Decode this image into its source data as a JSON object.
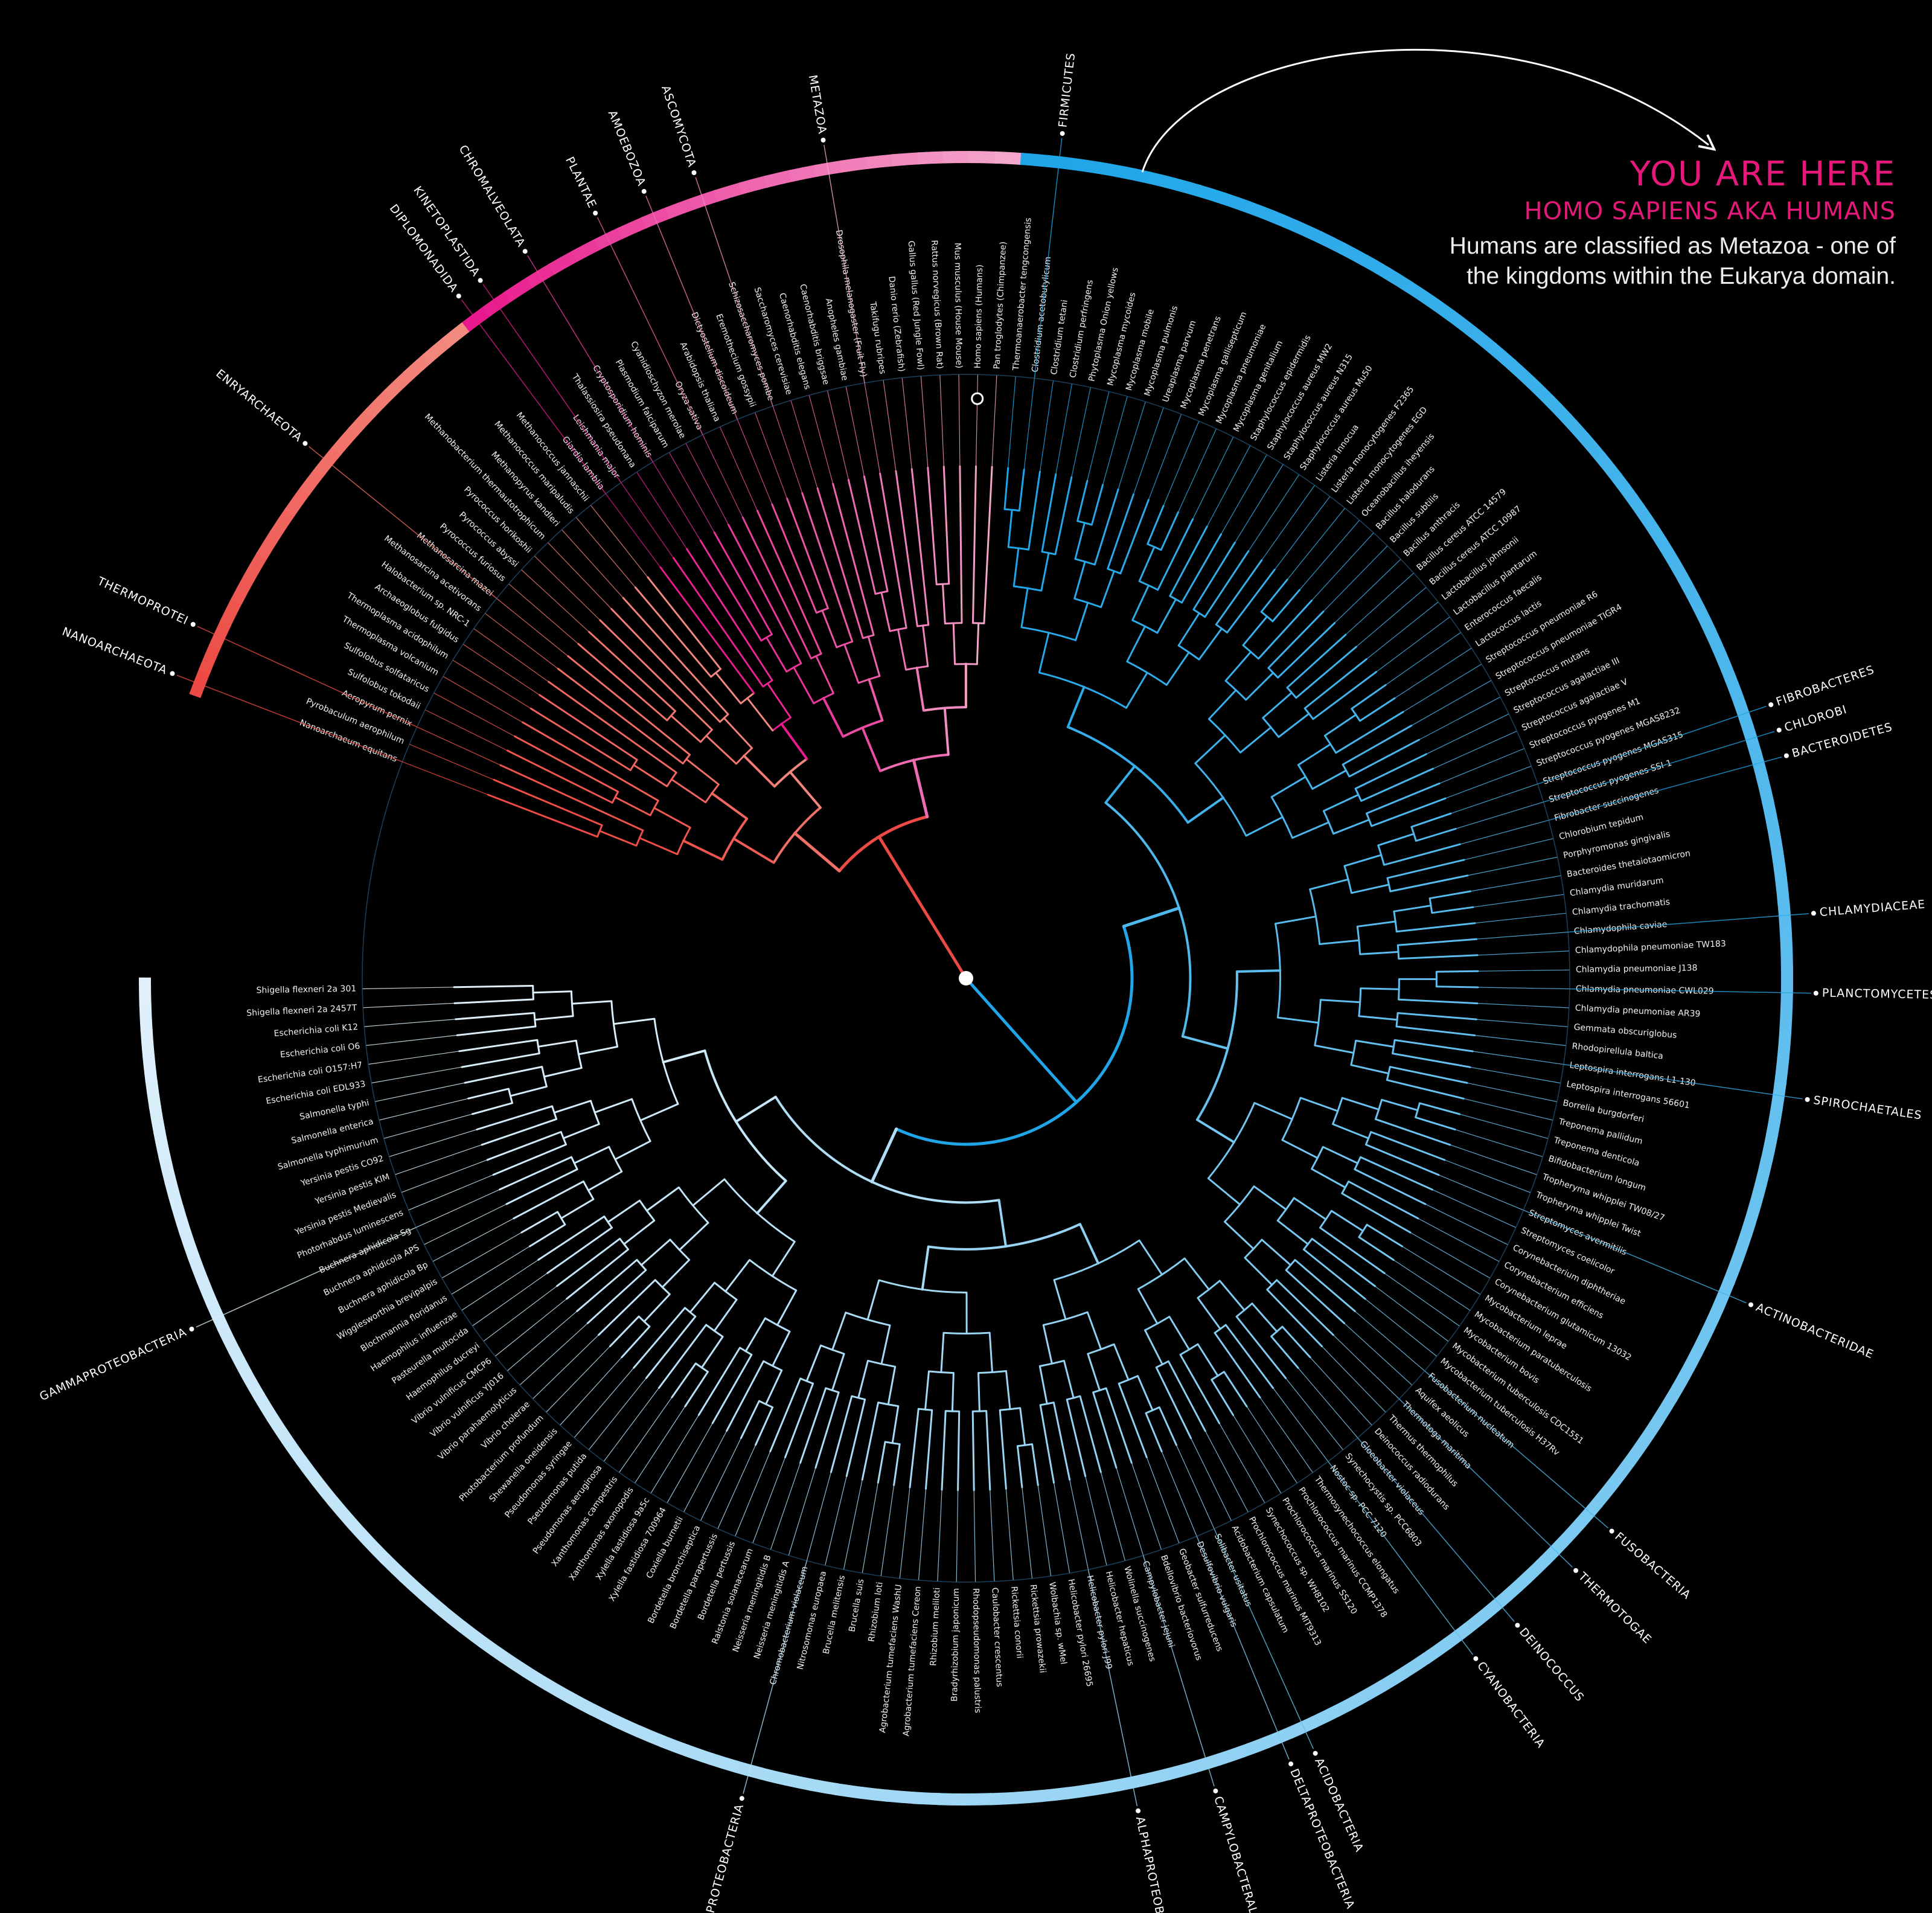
{
  "callout": {
    "title": "YOU ARE HERE",
    "subtitle": "HOMO SAPIENS AKA HUMANS",
    "body": "Humans are classified as Metazoa - one of the kingdoms within the Eukarya domain."
  },
  "colors": {
    "background": "#000000",
    "archaea": "#ee4a45",
    "eukarya": "#e8198c",
    "eukarya_light": "#f4a6cc",
    "bacteria": "#1fa5e8",
    "bacteria_light": "#dff0fb",
    "highlight": "#e6197b"
  },
  "groups": [
    {
      "label": "NANOARCHAEOTA",
      "color": "#ee4a45"
    },
    {
      "label": "THERMOPROTEI",
      "color": "#ee4a45"
    },
    {
      "label": "ENRYARCHAEOTA",
      "color": "#ef6a5f"
    },
    {
      "label": "DIPLOMONADIDA",
      "color": "#e8198c"
    },
    {
      "label": "KINETOPLASTIDA",
      "color": "#e8198c"
    },
    {
      "label": "CHROMALVEOLATA",
      "color": "#ea3d98"
    },
    {
      "label": "PLANTAE",
      "color": "#ec5aa6"
    },
    {
      "label": "AMOEBOZOA",
      "color": "#ee76b4"
    },
    {
      "label": "ASCOMYCOTA",
      "color": "#f08ac0"
    },
    {
      "label": "METAZOA",
      "color": "#f4a6cc"
    },
    {
      "label": "FIRMICUTES",
      "color": "#1fa5e8"
    },
    {
      "label": "FIBROBACTERES",
      "color": "#1fa5e8"
    },
    {
      "label": "BACTEROIDETES",
      "color": "#1fa5e8"
    },
    {
      "label": "CHLOROBI",
      "color": "#1fa5e8"
    },
    {
      "label": "CHLAMYDIACEAE",
      "color": "#2aaae8"
    },
    {
      "label": "PLANCTOMYCETES",
      "color": "#2aaae8"
    },
    {
      "label": "SPIROCHAETALES",
      "color": "#35aee9"
    },
    {
      "label": "ACTINOBACTERIDAE",
      "color": "#43b4ea"
    },
    {
      "label": "FUSOBACTERIA",
      "color": "#4db8eb"
    },
    {
      "label": "THERMOTOGAE",
      "color": "#4db8eb"
    },
    {
      "label": "DEINOCOCCUS",
      "color": "#56bbec"
    },
    {
      "label": "CYANOBACTERIA",
      "color": "#5ebfed"
    },
    {
      "label": "ACIDOBACTERIA",
      "color": "#66c2ee"
    },
    {
      "label": "DELTAPROTEOBACTERIA",
      "color": "#80cdf1"
    },
    {
      "label": "CAMPYLOBACTERALES",
      "color": "#8dd2f2"
    },
    {
      "label": "ALPHAPROTEOBACTERIA",
      "color": "#9ad7f4"
    },
    {
      "label": "BETAPROTEOBACTERIA",
      "color": "#b0e0f6"
    },
    {
      "label": "GAMMAPROTEOBACTERIA",
      "color": "#dff0fb"
    }
  ],
  "leaves": [
    "Nanoarchaeum equitans",
    "Pyrobaculum aerophilum",
    "Aeropyrum pernix",
    "Sulfolobus tokodaii",
    "Sulfolobus solfataricus",
    "Thermoplasma volcanium",
    "Thermoplasma acidophilum",
    "Archaeoglobus fulgidus",
    "Halobacterium sp. NRC-1",
    "Methanosarcina acetivorans",
    "Methanosarcina mazei",
    "Pyrococcus furiosus",
    "Pyrococcus abyssi",
    "Pyrococcus horikoshii",
    "Methanobacterium thermautotrophicum",
    "Methanopyrus kandleri",
    "Methanococcus maripaludis",
    "Methanococcus jannaschii",
    "Giardia lamblia",
    "Leishmania major",
    "Thalassiosira pseudonana",
    "Cryptosporidium hominis",
    "Plasmodium falciparum",
    "Cyanidioschyzon merolae",
    "Oryza sativa",
    "Arabidopsis thaliana",
    "Dictyostelium discoideum",
    "Eremothecium gossypii",
    "Schizosaccharomyces pombe",
    "Saccharomyces cerevisiae",
    "Caenorhabditis elegans",
    "Caenorhabditis briggsae",
    "Anopheles gambiae",
    "Drosophila melanogaster (Fruit Fly)",
    "Takifugu rubripes",
    "Danio rerio (Zebrafish)",
    "Gallus gallus (Red Jungle Fowl)",
    "Rattus norvegicus (Brown Rat)",
    "Mus musculus (House Mouse)",
    "Homo sapiens (Humans)",
    "Pan troglodytes (Chimpanzee)",
    "Thermoanaerobacter tengcongensis",
    "Clostridium acetobutylicum",
    "Clostridium tetani",
    "Clostridium perfringens",
    "Phytoplasma Onion yellows",
    "Mycoplasma mycoides",
    "Mycoplasma mobile",
    "Mycoplasma pulmonis",
    "Ureaplasma parvum",
    "Mycoplasma penetrans",
    "Mycoplasma gallisepticum",
    "Mycoplasma pneumoniae",
    "Mycoplasma genitalium",
    "Staphylococcus epidermidis",
    "Staphylococcus aureus MW2",
    "Staphylococcus aureus N315",
    "Staphylococcus aureus Mu50",
    "Listeria innocua",
    "Listeria monocytogenes F2365",
    "Listeria monocytogenes EGD",
    "Oceanobacillus iheyensis",
    "Bacillus halodurans",
    "Bacillus subtilis",
    "Bacillus anthracis",
    "Bacillus cereus ATCC 14579",
    "Bacillus cereus ATCC 10987",
    "Lactobacillus johnsonii",
    "Lactobacillus plantarum",
    "Enterococcus faecalis",
    "Lactococcus lactis",
    "Streptococcus pneumoniae R6",
    "Streptococcus pneumoniae TIGR4",
    "Streptococcus mutans",
    "Streptococcus agalactiae III",
    "Streptococcus agalactiae V",
    "Streptococcus pyogenes M1",
    "Streptococcus pyogenes MGAS8232",
    "Streptococcus pyogenes MGAS315",
    "Streptococcus pyogenes SSI-1",
    "Fibrobacter succinogenes",
    "Chlorobium tepidum",
    "Porphyromonas gingivalis",
    "Bacteroides thetaiotaomicron",
    "Chlamydia muridarum",
    "Chlamydia trachomatis",
    "Chlamydophila caviae",
    "Chlamydophila pneumoniae TW183",
    "Chlamydia pneumoniae J138",
    "Chlamydia pneumoniae CWL029",
    "Chlamydia pneumoniae AR39",
    "Gemmata obscuriglobus",
    "Rhodopirellula baltica",
    "Leptospira interrogans L1-130",
    "Leptospira interrogans 56601",
    "Borrelia burgdorferi",
    "Treponema pallidum",
    "Treponema denticola",
    "Bifidobacterium longum",
    "Tropheryma whipplei TW08/27",
    "Tropheryma whipplei Twist",
    "Streptomyces avermitilis",
    "Streptomyces coelicolor",
    "Corynebacterium diphtheriae",
    "Corynebacterium efficiens",
    "Corynebacterium glutamicum 13032",
    "Mycobacterium leprae",
    "Mycobacterium paratuberculosis",
    "Mycobacterium bovis",
    "Mycobacterium tuberculosis CDC1551",
    "Mycobacterium tuberculosis H37Rv",
    "Fusobacterium nucleatum",
    "Aquifex aeolicus",
    "Thermotoga maritima",
    "Thermus thermophilus",
    "Deinococcus radiodurans",
    "Gloeobacter violaceus",
    "Synechocystis sp. PCC6803",
    "Nostoc sp. PCC 7120",
    "Thermosynechococcus elongatus",
    "Prochlorococcus marinus CCMP1378",
    "Prochlorococcus marinus SS120",
    "Synechococcus sp. WH8102",
    "Prochlorococcus marinus MIT9313",
    "Acidobacterium capsulatum",
    "Solibacter usitatus",
    "Desulfovibrio vulgaris",
    "Geobacter sulfurreducens",
    "Bdellovibrio bacteriovorus",
    "Campylobacter jejuni",
    "Wolinella succinogenes",
    "Helicobacter hepaticus",
    "Helicobacter pylori J99",
    "Helicobacter pylori 26695",
    "Wolbachia sp. wMel",
    "Rickettsia prowazekii",
    "Rickettsia conorii",
    "Caulobacter crescentus",
    "Rhodopseudomonas palustris",
    "Bradyrhizobium japonicum",
    "Rhizobium meliloti",
    "Agrobacterium tumefaciens Cereon",
    "Agrobacterium tumefaciens WashU",
    "Rhizobium loti",
    "Brucella suis",
    "Brucella melitensis",
    "Nitrosomonas europaea",
    "Chromobacterium violaceum",
    "Neisseria meningitidis A",
    "Neisseria meningitidis B",
    "Ralstonia solanacearum",
    "Bordetella pertussis",
    "Bordetella parapertussis",
    "Bordetella bronchiseptica",
    "Coxiella burnetii",
    "Xylella fastidiosa 700964",
    "Xylella fastidiosa 9a5c",
    "Xanthomonas axonopodis",
    "Xanthomonas campestris",
    "Pseudomonas aeruginosa",
    "Pseudomonas putida",
    "Pseudomonas syringae",
    "Shewanella oneidensis",
    "Photobacterium profundum",
    "Vibrio cholerae",
    "Vibrio parahaemolyticus",
    "Vibrio vulnificus YJ016",
    "Vibrio vulnificus CMCP6",
    "Haemophilus ducreyi",
    "Pasteurella multocida",
    "Haemophilus influenzae",
    "Blochmannia floridanus",
    "Wigglesworthia brevipalpis",
    "Buchnera aphidicola Bp",
    "Buchnera aphidicola APS",
    "Buchnera aphidicola Sg",
    "Photorhabdus luminescens",
    "Yersinia pestis Medievalis",
    "Yersinia pestis KIM",
    "Yersinia pestis CO92",
    "Salmonella typhimurium",
    "Salmonella enterica",
    "Salmonella typhi",
    "Escherichia coli EDL933",
    "Escherichia coli O157:H7",
    "Escherichia coli O6",
    "Escherichia coli K12",
    "Shigella flexneri 2a 2457T",
    "Shigella flexneri 2a 301"
  ]
}
